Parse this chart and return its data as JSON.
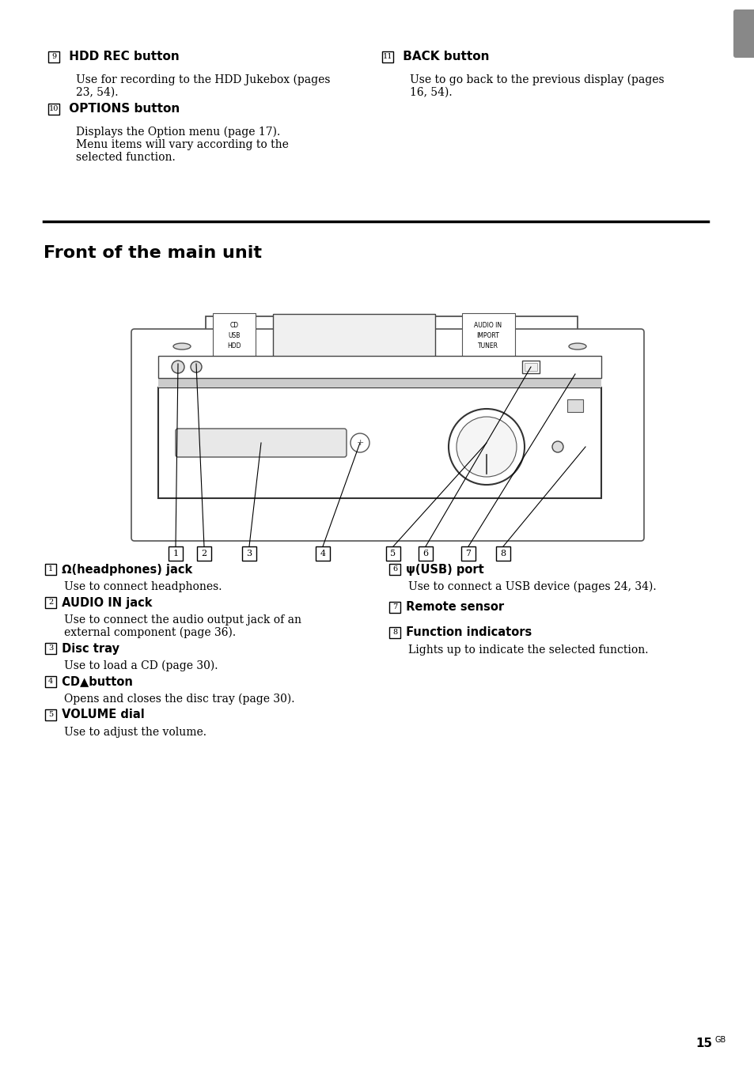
{
  "bg_color": "#ffffff",
  "text_color": "#000000",
  "page_num": "15",
  "page_suffix": "GB",
  "section_title": "Front of the main unit",
  "top_items": [
    {
      "num": "9",
      "bold": "HDD REC button",
      "body": "Use for recording to the HDD Jukebox (pages\n23, 54)."
    },
    {
      "num": "10",
      "bold": "OPTIONS button",
      "body": "Displays the Option menu (page 17).\nMenu items will vary according to the\nselected function."
    },
    {
      "num": "11",
      "bold": "BACK button",
      "body": "Use to go back to the previous display (pages\n16, 54)."
    }
  ],
  "bottom_items_left": [
    {
      "num": "1",
      "bold": "Ω(headphones) jack",
      "body": "Use to connect headphones."
    },
    {
      "num": "2",
      "bold": "AUDIO IN jack",
      "body": "Use to connect the audio output jack of an\nexternal component (page 36)."
    },
    {
      "num": "3",
      "bold": "Disc tray",
      "body": "Use to load a CD (page 30)."
    },
    {
      "num": "4",
      "bold": "CD▲button",
      "body": "Opens and closes the disc tray (page 30)."
    },
    {
      "num": "5",
      "bold": "VOLUME dial",
      "body": "Use to adjust the volume."
    }
  ],
  "bottom_items_right": [
    {
      "num": "6",
      "bold": "ψ(USB) port",
      "body": "Use to connect a USB device (pages 24, 34)."
    },
    {
      "num": "7",
      "bold": "Remote sensor",
      "body": ""
    },
    {
      "num": "8",
      "bold": "Function indicators",
      "body": "Lights up to indicate the selected function."
    }
  ]
}
